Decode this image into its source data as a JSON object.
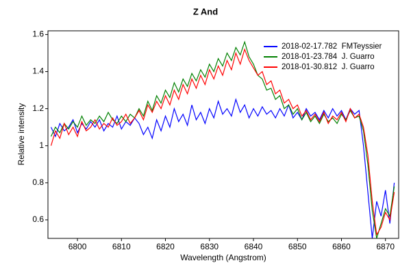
{
  "chart_data": {
    "type": "line",
    "title": "Z And",
    "xlabel": "Wavelength (Angstrom)",
    "ylabel": "Relative intensity",
    "x": [
      6794,
      6795,
      6796,
      6797,
      6798,
      6799,
      6800,
      6801,
      6802,
      6803,
      6804,
      6805,
      6806,
      6807,
      6808,
      6809,
      6810,
      6811,
      6812,
      6813,
      6814,
      6815,
      6816,
      6817,
      6818,
      6819,
      6820,
      6821,
      6822,
      6823,
      6824,
      6825,
      6826,
      6827,
      6828,
      6829,
      6830,
      6831,
      6832,
      6833,
      6834,
      6835,
      6836,
      6837,
      6838,
      6839,
      6840,
      6841,
      6842,
      6843,
      6844,
      6845,
      6846,
      6847,
      6848,
      6849,
      6850,
      6851,
      6852,
      6853,
      6854,
      6855,
      6856,
      6857,
      6858,
      6859,
      6860,
      6861,
      6862,
      6863,
      6864,
      6865,
      6866,
      6867,
      6868,
      6869,
      6870,
      6871,
      6872
    ],
    "series": [
      {
        "name": "2018-02-17.782  FMTeyssier",
        "color": "#0000ff",
        "values": [
          1.1,
          1.05,
          1.12,
          1.08,
          1.1,
          1.14,
          1.07,
          1.12,
          1.09,
          1.13,
          1.1,
          1.14,
          1.08,
          1.12,
          1.1,
          1.16,
          1.09,
          1.13,
          1.11,
          1.15,
          1.12,
          1.06,
          1.1,
          1.04,
          1.14,
          1.08,
          1.16,
          1.1,
          1.2,
          1.13,
          1.17,
          1.11,
          1.22,
          1.14,
          1.18,
          1.12,
          1.2,
          1.15,
          1.24,
          1.17,
          1.2,
          1.16,
          1.25,
          1.18,
          1.22,
          1.15,
          1.2,
          1.16,
          1.21,
          1.17,
          1.19,
          1.15,
          1.2,
          1.16,
          1.22,
          1.15,
          1.18,
          1.14,
          1.2,
          1.16,
          1.18,
          1.14,
          1.19,
          1.15,
          1.2,
          1.16,
          1.19,
          1.14,
          1.2,
          1.17,
          1.19,
          1.0,
          0.75,
          0.5,
          0.7,
          0.62,
          0.76,
          0.58,
          0.8
        ]
      },
      {
        "name": "2018-01-23.784  J. Guarro",
        "color": "#008000",
        "values": [
          1.05,
          1.1,
          1.07,
          1.12,
          1.09,
          1.13,
          1.1,
          1.16,
          1.11,
          1.14,
          1.12,
          1.16,
          1.13,
          1.18,
          1.14,
          1.12,
          1.16,
          1.13,
          1.17,
          1.15,
          1.2,
          1.16,
          1.24,
          1.19,
          1.27,
          1.23,
          1.3,
          1.26,
          1.34,
          1.29,
          1.36,
          1.32,
          1.39,
          1.35,
          1.41,
          1.37,
          1.44,
          1.4,
          1.47,
          1.43,
          1.5,
          1.46,
          1.53,
          1.49,
          1.56,
          1.48,
          1.44,
          1.38,
          1.36,
          1.3,
          1.31,
          1.25,
          1.27,
          1.2,
          1.22,
          1.17,
          1.2,
          1.14,
          1.18,
          1.13,
          1.16,
          1.12,
          1.17,
          1.13,
          1.15,
          1.12,
          1.17,
          1.14,
          1.19,
          1.15,
          1.16,
          1.08,
          0.9,
          0.65,
          0.5,
          0.58,
          0.66,
          0.62,
          0.78
        ]
      },
      {
        "name": "2018-01-30.812  J. Guarro",
        "color": "#ff0000",
        "values": [
          1.0,
          1.08,
          1.04,
          1.12,
          1.06,
          1.1,
          1.05,
          1.13,
          1.08,
          1.1,
          1.14,
          1.09,
          1.12,
          1.1,
          1.15,
          1.11,
          1.13,
          1.17,
          1.12,
          1.15,
          1.19,
          1.14,
          1.22,
          1.18,
          1.24,
          1.2,
          1.27,
          1.22,
          1.3,
          1.25,
          1.33,
          1.28,
          1.36,
          1.31,
          1.38,
          1.33,
          1.41,
          1.36,
          1.43,
          1.38,
          1.46,
          1.41,
          1.5,
          1.44,
          1.52,
          1.46,
          1.42,
          1.38,
          1.4,
          1.33,
          1.35,
          1.28,
          1.3,
          1.23,
          1.25,
          1.2,
          1.22,
          1.16,
          1.19,
          1.14,
          1.17,
          1.13,
          1.18,
          1.12,
          1.16,
          1.14,
          1.18,
          1.13,
          1.2,
          1.15,
          1.17,
          1.1,
          0.95,
          0.7,
          0.52,
          0.56,
          0.64,
          0.6,
          0.75
        ]
      }
    ],
    "xlim": [
      6793.3,
      6873
    ],
    "ylim": [
      0.5,
      1.62
    ],
    "xticks": [
      6800,
      6810,
      6820,
      6830,
      6840,
      6850,
      6860,
      6870
    ],
    "yticks": [
      0.6,
      0.8,
      1,
      1.2,
      1.4,
      1.6
    ],
    "legend": "upper right"
  }
}
